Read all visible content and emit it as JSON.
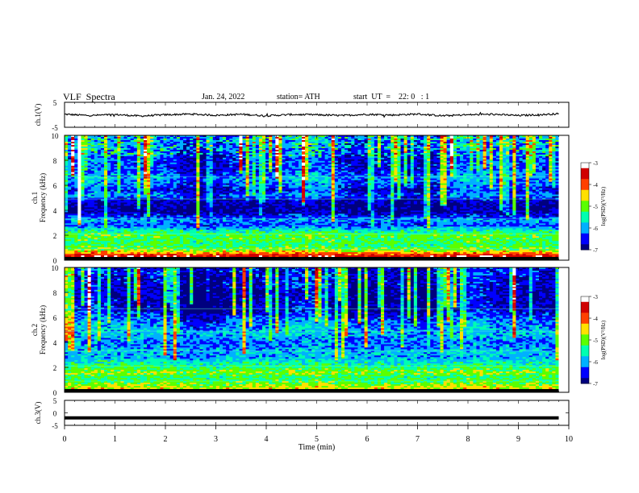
{
  "header": {
    "title": "VLF  Spectra",
    "date": "Jan. 24, 2022",
    "station": "station= ATH",
    "start": "start  UT  =    22: 0   : 1"
  },
  "colors": {
    "colormap": [
      "#00007f",
      "#0000ff",
      "#00b0ff",
      "#00ffb0",
      "#5aff00",
      "#ffe000",
      "#ff4000",
      "#d00000",
      "#ffffff"
    ],
    "trace": "#000000",
    "background": "#ffffff"
  },
  "chart_data": [
    {
      "type": "line",
      "panel": "ch1",
      "ylabel": "ch.1(V)",
      "ylim": [
        -5,
        5
      ],
      "yticks": [
        "5",
        "-5"
      ],
      "xlim": [
        0,
        10
      ],
      "series": [
        {
          "x": [
            0,
            0.5,
            1,
            1.5,
            2,
            2.5,
            3,
            3.5,
            4,
            4.5,
            5,
            5.5,
            6,
            6.5,
            7,
            7.5,
            8,
            8.5,
            9,
            9.5,
            9.8
          ],
          "values": [
            0.2,
            -0.3,
            0.1,
            -0.5,
            0.0,
            0.3,
            -0.2,
            0.2,
            -0.4,
            0.1,
            0.0,
            -0.3,
            0.2,
            -0.1,
            0.3,
            -0.4,
            0.0,
            0.2,
            -0.3,
            0.1,
            0.4
          ]
        }
      ]
    },
    {
      "type": "heatmap",
      "panel": "ch1-spectrogram",
      "ylabel": "ch.1\nFrequency (kHz)",
      "ylim": [
        0,
        10
      ],
      "yticks": [
        "0",
        "2",
        "4",
        "6",
        "8",
        "10"
      ],
      "xlim": [
        0,
        9.8
      ],
      "colorbar": {
        "label": "log(PSD)(V²/Hz)",
        "range": [
          -7,
          -3
        ],
        "ticks": [
          "-3",
          "-4",
          "-5",
          "-6",
          "-7"
        ]
      },
      "background_level_by_freq_khz": [
        [
          0.3,
          -3.4
        ],
        [
          0.8,
          -4.9
        ],
        [
          1.2,
          -5.3
        ],
        [
          1.6,
          -5.2
        ],
        [
          2.0,
          -5.1
        ],
        [
          2.4,
          -5.6
        ],
        [
          2.8,
          -6.4
        ],
        [
          3.2,
          -6.0
        ],
        [
          3.6,
          -6.6
        ],
        [
          4.0,
          -7.0
        ],
        [
          4.4,
          -6.9
        ],
        [
          4.8,
          -6.7
        ],
        [
          5.2,
          -6.2
        ],
        [
          5.6,
          -6.6
        ],
        [
          6.0,
          -6.3
        ],
        [
          6.6,
          -6.1
        ],
        [
          7.2,
          -6.4
        ],
        [
          8.0,
          -6.5
        ],
        [
          9.0,
          -6.3
        ],
        [
          10.0,
          -6.2
        ]
      ]
    },
    {
      "type": "heatmap",
      "panel": "ch2-spectrogram",
      "ylabel": "ch.2\nFrequency (kHz)",
      "ylim": [
        0,
        10
      ],
      "yticks": [
        "0",
        "2",
        "4",
        "6",
        "8",
        "10"
      ],
      "xlim": [
        0,
        9.8
      ],
      "colorbar": {
        "label": "log(PSD)(V²/Hz)",
        "range": [
          -7,
          -3
        ],
        "ticks": [
          "-3",
          "-4",
          "-5",
          "-6",
          "-7"
        ]
      },
      "background_level_by_freq_khz": [
        [
          0.3,
          -4.6
        ],
        [
          0.8,
          -5.1
        ],
        [
          1.2,
          -5.3
        ],
        [
          1.6,
          -4.9
        ],
        [
          2.0,
          -5.3
        ],
        [
          2.4,
          -5.6
        ],
        [
          2.8,
          -6.0
        ],
        [
          3.2,
          -5.9
        ],
        [
          3.6,
          -6.1
        ],
        [
          4.0,
          -6.2
        ],
        [
          4.4,
          -6.0
        ],
        [
          4.8,
          -5.9
        ],
        [
          5.2,
          -6.1
        ],
        [
          5.6,
          -6.2
        ],
        [
          6.0,
          -6.4
        ],
        [
          6.6,
          -6.8
        ],
        [
          7.2,
          -6.8
        ],
        [
          8.0,
          -6.9
        ],
        [
          9.0,
          -6.8
        ],
        [
          10.0,
          -6.7
        ]
      ]
    },
    {
      "type": "line",
      "panel": "ch3",
      "ylabel": "ch.3(V)",
      "ylim": [
        -5,
        5
      ],
      "yticks": [
        "5",
        "0",
        "-5"
      ],
      "xlim": [
        0,
        10
      ],
      "xlabel": "Time  (min)",
      "xticks": [
        "0",
        "1",
        "2",
        "3",
        "4",
        "5",
        "6",
        "7",
        "8",
        "9",
        "10"
      ],
      "series": [
        {
          "x": [
            0,
            9.8
          ],
          "values": [
            -2,
            -2
          ]
        }
      ]
    }
  ]
}
